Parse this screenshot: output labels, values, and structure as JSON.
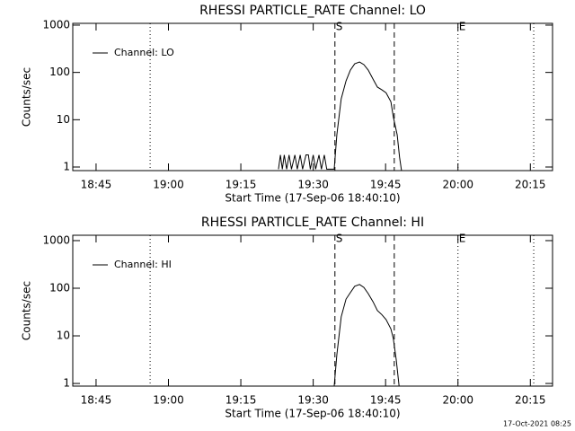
{
  "chart_data": [
    {
      "type": "line",
      "title": "RHESSI PARTICLE_RATE Channel: LO",
      "xlabel": "Start Time (17-Sep-06 18:40:10)",
      "ylabel": "Counts/sec",
      "log_y": true,
      "legend": "upper left",
      "xlim": [
        1120.17,
        1219.6
      ],
      "ylim": [
        0.84,
        1090
      ],
      "xticks": [
        {
          "value": 1125,
          "label": "18:45"
        },
        {
          "value": 1140,
          "label": "19:00"
        },
        {
          "value": 1155,
          "label": "19:15"
        },
        {
          "value": 1170,
          "label": "19:30"
        },
        {
          "value": 1185,
          "label": "19:45"
        },
        {
          "value": 1200,
          "label": "20:00"
        },
        {
          "value": 1215,
          "label": "20:15"
        }
      ],
      "yticks": [
        1,
        10,
        100,
        1000
      ],
      "vlines": [
        {
          "x": 1136.2,
          "style": "dotted"
        },
        {
          "x": 1174.5,
          "style": "dashed",
          "label": "S"
        },
        {
          "x": 1186.8,
          "style": "dashed"
        },
        {
          "x": 1200,
          "style": "dotted",
          "label": "E"
        },
        {
          "x": 1215.7,
          "style": "dotted"
        }
      ],
      "x": [
        1162.8,
        1163.2,
        1163.6,
        1164.0,
        1164.5,
        1165.0,
        1165.5,
        1166.2,
        1166.7,
        1167.3,
        1167.8,
        1168.5,
        1169.0,
        1169.4,
        1170.0,
        1170.5,
        1171.2,
        1171.7,
        1172.3,
        1172.8,
        1174.35,
        1174.9,
        1175.8,
        1176.8,
        1177.7,
        1178.6,
        1179.6,
        1180.5,
        1181.4,
        1182.4,
        1183.3,
        1184.2,
        1185.1,
        1186.1,
        1186.6,
        1187.4,
        1187.9,
        1188.3
      ],
      "series": [
        {
          "name": "Channel: LO",
          "color": "#000000",
          "values": [
            0.9,
            1.8,
            0.9,
            1.8,
            0.9,
            1.8,
            0.9,
            1.8,
            0.9,
            1.8,
            0.9,
            1.8,
            1.8,
            0.9,
            1.8,
            0.9,
            1.8,
            0.9,
            1.8,
            0.9,
            0.9,
            4.8,
            27.6,
            66,
            112,
            152,
            166,
            146,
            112,
            72,
            49,
            43,
            37,
            24,
            11.5,
            4.8,
            1.6,
            0.84
          ]
        }
      ]
    },
    {
      "type": "line",
      "title": "RHESSI PARTICLE_RATE Channel: HI",
      "xlabel": "Start Time (17-Sep-06 18:40:10)",
      "ylabel": "Counts/sec",
      "log_y": true,
      "legend": "upper left",
      "xlim": [
        1120.17,
        1219.6
      ],
      "ylim": [
        0.88,
        1296
      ],
      "xticks": [
        {
          "value": 1125,
          "label": "18:45"
        },
        {
          "value": 1140,
          "label": "19:00"
        },
        {
          "value": 1155,
          "label": "19:15"
        },
        {
          "value": 1170,
          "label": "19:30"
        },
        {
          "value": 1185,
          "label": "19:45"
        },
        {
          "value": 1200,
          "label": "20:00"
        },
        {
          "value": 1215,
          "label": "20:15"
        }
      ],
      "yticks": [
        1,
        10,
        100,
        1000
      ],
      "vlines": [
        {
          "x": 1136.2,
          "style": "dotted"
        },
        {
          "x": 1174.5,
          "style": "dashed",
          "label": "S"
        },
        {
          "x": 1186.8,
          "style": "dashed"
        },
        {
          "x": 1200,
          "style": "dotted",
          "label": "E"
        },
        {
          "x": 1215.7,
          "style": "dotted"
        }
      ],
      "x": [
        1174.35,
        1174.9,
        1175.8,
        1176.8,
        1177.7,
        1178.6,
        1179.6,
        1180.5,
        1181.4,
        1182.4,
        1183.3,
        1184.2,
        1185.1,
        1186.1,
        1186.6,
        1187.2,
        1187.6,
        1187.8
      ],
      "series": [
        {
          "name": "Channel: HI",
          "color": "#000000",
          "values": [
            0.88,
            4,
            25,
            59,
            81,
            110,
            120,
            104,
            77,
            52,
            34,
            28,
            22,
            14,
            8.8,
            3.2,
            1.35,
            0.88
          ]
        }
      ]
    }
  ],
  "footer": "17-Oct-2021 08:25"
}
